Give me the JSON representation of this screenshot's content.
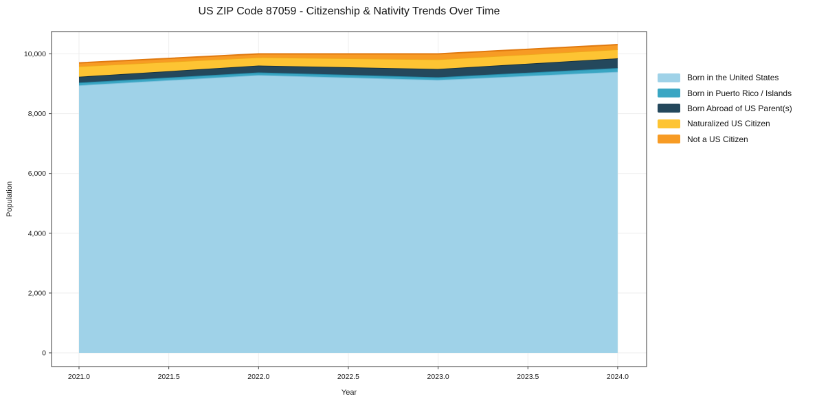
{
  "chart_data": {
    "type": "area",
    "stacked": true,
    "title": "US ZIP Code 87059 - Citizenship & Nativity Trends Over Time",
    "xlabel": "Year",
    "ylabel": "Population",
    "x": [
      2021,
      2022,
      2023,
      2024
    ],
    "series": [
      {
        "name": "Born in the United States",
        "color": "#9fd2e8",
        "edge": "#7cc0dc",
        "values": [
          8950,
          9290,
          9130,
          9400
        ]
      },
      {
        "name": "Born in Puerto Rico / Islands",
        "color": "#3aa6c3",
        "edge": "#2488a6",
        "values": [
          90,
          90,
          90,
          130
        ]
      },
      {
        "name": "Born Abroad of US Parent(s)",
        "color": "#24485c",
        "edge": "#17323f",
        "values": [
          195,
          230,
          275,
          320
        ]
      },
      {
        "name": "Naturalized US Citizen",
        "color": "#fdc433",
        "edge": "#f0a81c",
        "values": [
          350,
          275,
          320,
          300
        ]
      },
      {
        "name": "Not a US Citizen",
        "color": "#f79b24",
        "edge": "#e0790f",
        "values": [
          115,
          115,
          185,
          160
        ]
      }
    ],
    "totals_by_year": [
      9700,
      10000,
      10000,
      10310
    ],
    "x_ticks": [
      2021.0,
      2021.5,
      2022.0,
      2022.5,
      2023.0,
      2023.5,
      2024.0
    ],
    "x_tick_labels": [
      "2021.0",
      "2021.5",
      "2022.0",
      "2022.5",
      "2023.0",
      "2023.5",
      "2024.0"
    ],
    "y_ticks": [
      0,
      2000,
      4000,
      6000,
      8000,
      10000
    ],
    "y_tick_labels": [
      "0",
      "2,000",
      "4,000",
      "6,000",
      "8,000",
      "10,000"
    ],
    "xlim": [
      2020.847,
      2024.161
    ],
    "ylim": [
      -459,
      10746
    ],
    "grid": true,
    "legend_position": "right of plot",
    "colors": {
      "grid": "#ededed",
      "spine": "#3a3a3a",
      "tick_label": "#1a1a1a",
      "background": "#ffffff"
    }
  }
}
